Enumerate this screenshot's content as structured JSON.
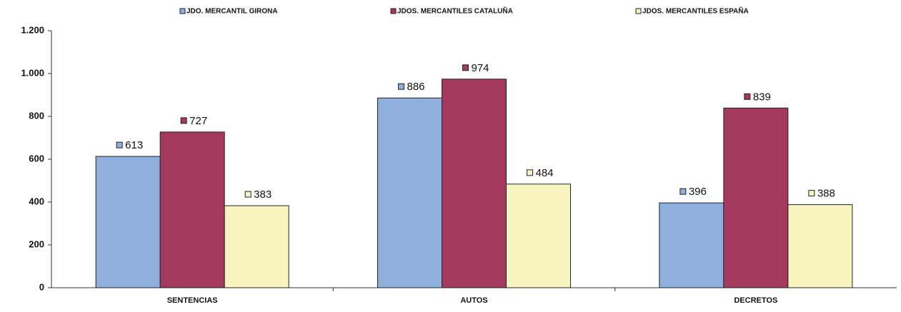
{
  "chart_data": {
    "type": "bar",
    "categories": [
      "SENTENCIAS",
      "AUTOS",
      "DECRETOS"
    ],
    "series": [
      {
        "name": "JDO. MERCANTIL GIRONA",
        "color": "#8fb0dc",
        "values": [
          613,
          886,
          396
        ]
      },
      {
        "name": "JDOS. MERCANTILES CATALUÑA",
        "color": "#a33a5e",
        "values": [
          727,
          974,
          839
        ]
      },
      {
        "name": "JDOS. MERCANTILES ESPAÑA",
        "color": "#f8f4c0",
        "values": [
          383,
          484,
          388
        ]
      }
    ],
    "ylim": [
      0,
      1200
    ],
    "yticks": [
      0,
      200,
      400,
      600,
      800,
      {
        "value": 1000,
        "label": "1.000"
      },
      {
        "value": 1200,
        "label": "1.200"
      }
    ],
    "grid": false
  }
}
